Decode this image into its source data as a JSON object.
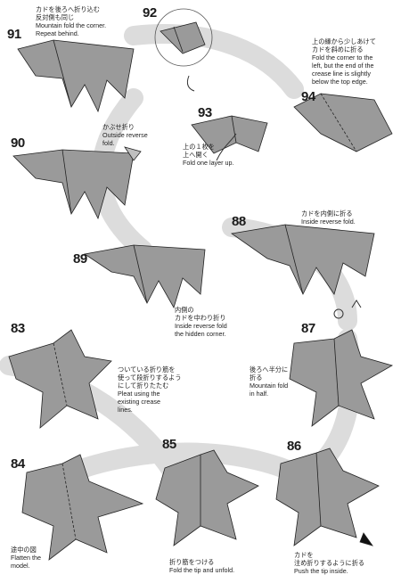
{
  "steps": {
    "s83": "83",
    "s84": "84",
    "s85": "85",
    "s86": "86",
    "s87": "87",
    "s88": "88",
    "s89": "89",
    "s90": "90",
    "s91": "91",
    "s92": "92",
    "s93": "93",
    "s94": "94"
  },
  "captions": {
    "c91": {
      "ja1": "カドを後ろへ折り込む",
      "ja2": "反対側も同じ",
      "en1": "Mountain fold the corner.",
      "en2": "Repeat behind."
    },
    "c94": {
      "ja1": "上の縁から少しあけて",
      "ja2": "カドを斜めに折る",
      "en1": "Fold the corner to the",
      "en2": "left, but the end of the",
      "en3": "crease line is slightly",
      "en4": "below the top edge."
    },
    "c90": {
      "ja1": "かぶせ折り",
      "en1": "Outside reverse",
      "en2": "fold."
    },
    "c93": {
      "ja1": "上の１枚を",
      "ja2": "上へ開く",
      "en1": "Fold one layer up."
    },
    "c88": {
      "ja1": "カドを内側に折る",
      "en1": "Inside reverse fold."
    },
    "c89": {
      "ja1": "内側の",
      "ja2": "カドを中わり折り",
      "en1": "Inside reverse fold",
      "en2": "the hidden corner."
    },
    "c83": {
      "ja1": "ついている折り筋を",
      "ja2": "使って段折りするよう",
      "ja3": "にして折りたたむ",
      "en1": "Pleat using the",
      "en2": "existing crease",
      "en3": "lines."
    },
    "c87": {
      "ja1": "後ろへ半分に",
      "ja2": "折る",
      "en1": "Mountain fold",
      "en2": "in half."
    },
    "c84": {
      "ja1": "途中の図",
      "en1": "Flatten the",
      "en2": "model."
    },
    "c85": {
      "ja1": "折り筋をつける",
      "en1": "Fold the tip and unfold."
    },
    "c86": {
      "ja1": "カドを",
      "ja2": "注め折りするように折る",
      "en1": "Push the tip inside."
    }
  },
  "colors": {
    "paper": "#9a9a9a",
    "paper_dark": "#6f6f6f",
    "band": "#dcdcdc",
    "ink": "#1a1a1a"
  }
}
